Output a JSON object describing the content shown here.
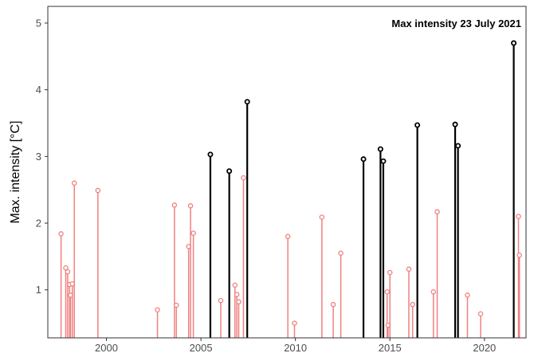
{
  "chart_data": {
    "type": "lollipop",
    "ylabel": "Max. intensity [°C]",
    "xlabel": "",
    "annotation": "Max intensity 23 July 2021",
    "xlim": [
      1996.9,
      2022.2
    ],
    "ylim": [
      0.28,
      5.25
    ],
    "baseline": 0.28,
    "x_ticks": [
      2000,
      2005,
      2010,
      2015,
      2020
    ],
    "y_ticks": [
      1,
      2,
      3,
      4,
      5
    ],
    "grid": false,
    "colors": {
      "highlight": "#000000",
      "normal": "#f08080",
      "frame": "#333333"
    },
    "events": [
      {
        "x": 1997.6,
        "y": 1.84,
        "highlight": false
      },
      {
        "x": 1997.85,
        "y": 1.33,
        "highlight": false
      },
      {
        "x": 1997.95,
        "y": 1.27,
        "highlight": false
      },
      {
        "x": 1998.05,
        "y": 1.08,
        "highlight": false
      },
      {
        "x": 1998.1,
        "y": 0.92,
        "highlight": false
      },
      {
        "x": 1998.2,
        "y": 1.09,
        "highlight": false
      },
      {
        "x": 1998.3,
        "y": 2.6,
        "highlight": false
      },
      {
        "x": 1999.55,
        "y": 2.49,
        "highlight": false
      },
      {
        "x": 2002.7,
        "y": 0.7,
        "highlight": false
      },
      {
        "x": 2003.6,
        "y": 2.27,
        "highlight": false
      },
      {
        "x": 2003.7,
        "y": 0.77,
        "highlight": false
      },
      {
        "x": 2004.35,
        "y": 1.65,
        "highlight": false
      },
      {
        "x": 2004.45,
        "y": 2.26,
        "highlight": false
      },
      {
        "x": 2004.6,
        "y": 1.85,
        "highlight": false
      },
      {
        "x": 2005.5,
        "y": 3.03,
        "highlight": true
      },
      {
        "x": 2006.05,
        "y": 0.84,
        "highlight": false
      },
      {
        "x": 2006.5,
        "y": 2.78,
        "highlight": true
      },
      {
        "x": 2006.8,
        "y": 1.07,
        "highlight": false
      },
      {
        "x": 2006.9,
        "y": 0.93,
        "highlight": false
      },
      {
        "x": 2007.0,
        "y": 0.82,
        "highlight": false
      },
      {
        "x": 2007.25,
        "y": 2.68,
        "highlight": false
      },
      {
        "x": 2007.45,
        "y": 3.82,
        "highlight": true
      },
      {
        "x": 2009.6,
        "y": 1.8,
        "highlight": false
      },
      {
        "x": 2009.95,
        "y": 0.5,
        "highlight": false
      },
      {
        "x": 2011.4,
        "y": 2.09,
        "highlight": false
      },
      {
        "x": 2012.0,
        "y": 0.78,
        "highlight": false
      },
      {
        "x": 2012.4,
        "y": 1.55,
        "highlight": false
      },
      {
        "x": 2013.6,
        "y": 2.96,
        "highlight": true
      },
      {
        "x": 2014.5,
        "y": 3.11,
        "highlight": true
      },
      {
        "x": 2014.65,
        "y": 2.93,
        "highlight": true
      },
      {
        "x": 2014.85,
        "y": 0.97,
        "highlight": false
      },
      {
        "x": 2014.9,
        "y": 0.47,
        "highlight": false
      },
      {
        "x": 2015.0,
        "y": 1.26,
        "highlight": false
      },
      {
        "x": 2016.0,
        "y": 1.31,
        "highlight": false
      },
      {
        "x": 2016.2,
        "y": 0.78,
        "highlight": false
      },
      {
        "x": 2016.45,
        "y": 3.47,
        "highlight": true
      },
      {
        "x": 2017.3,
        "y": 0.97,
        "highlight": false
      },
      {
        "x": 2017.5,
        "y": 2.17,
        "highlight": false
      },
      {
        "x": 2018.45,
        "y": 3.48,
        "highlight": true
      },
      {
        "x": 2018.6,
        "y": 3.16,
        "highlight": true
      },
      {
        "x": 2019.1,
        "y": 0.92,
        "highlight": false
      },
      {
        "x": 2019.8,
        "y": 0.64,
        "highlight": false
      },
      {
        "x": 2021.55,
        "y": 4.7,
        "highlight": true
      },
      {
        "x": 2021.8,
        "y": 2.1,
        "highlight": false
      },
      {
        "x": 2021.85,
        "y": 1.52,
        "highlight": false
      }
    ]
  }
}
